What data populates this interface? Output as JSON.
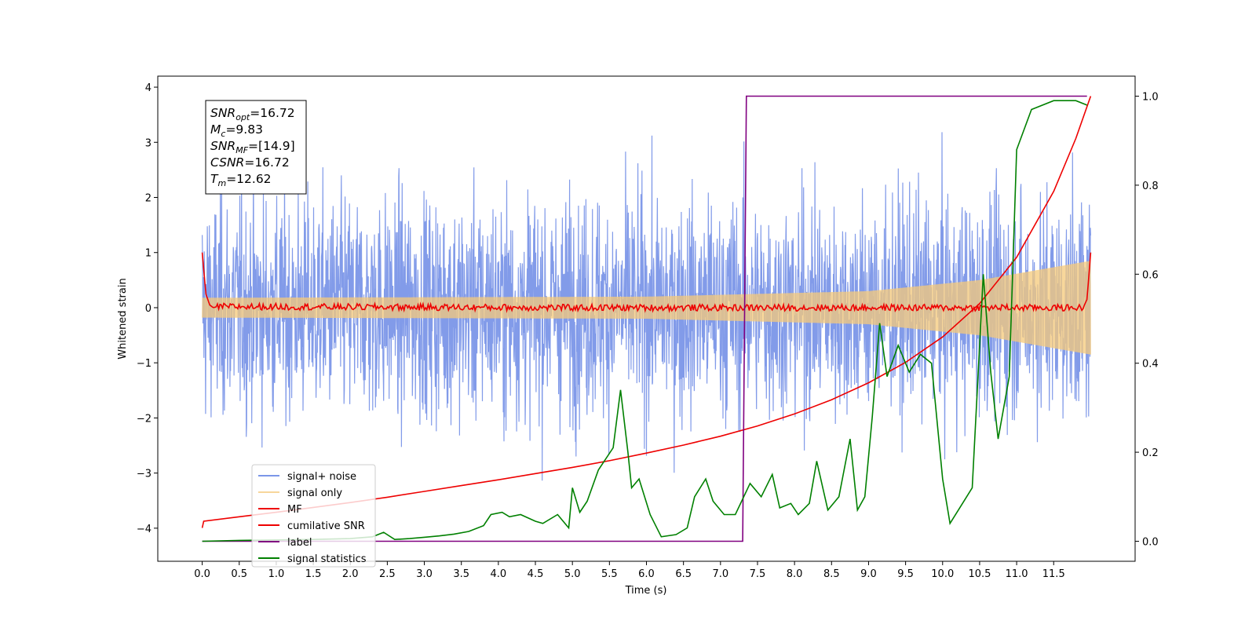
{
  "chart_data": {
    "type": "line",
    "title": "",
    "xlabel": "Time (s)",
    "ylabel": "Whitened strain",
    "y2label": "",
    "xlim": [
      -0.6,
      12.6
    ],
    "ylim": [
      -4.6,
      4.2
    ],
    "y2lim": [
      -0.045,
      1.045
    ],
    "xticks": [
      "0.0",
      "0.5",
      "1.0",
      "1.5",
      "2.0",
      "2.5",
      "3.0",
      "3.5",
      "4.0",
      "4.5",
      "5.0",
      "5.5",
      "6.0",
      "6.5",
      "7.0",
      "7.5",
      "8.0",
      "8.5",
      "9.0",
      "9.5",
      "10.0",
      "10.5",
      "11.0",
      "11.5"
    ],
    "yticks": [
      "4",
      "3",
      "2",
      "1",
      "0",
      "−1",
      "−2",
      "−3",
      "−4"
    ],
    "y2ticks": [
      "1.0",
      "0.8",
      "0.6",
      "0.4",
      "0.2",
      "0.0"
    ],
    "grid": false,
    "legend_position": "lower-left",
    "annotation": {
      "lines": [
        {
          "base": "SNR",
          "sub": "opt",
          "value": "=16.72"
        },
        {
          "base": "M",
          "sub": "c",
          "value": "=9.83"
        },
        {
          "base": "SNR",
          "sub": "MF",
          "value": "=[14.9]"
        },
        {
          "base": "CSNR",
          "sub": "",
          "value": "=16.72"
        },
        {
          "base": "T",
          "sub": "m",
          "value": "=12.62"
        }
      ]
    },
    "series": [
      {
        "name": "signal+ noise",
        "color": "#7b96e8",
        "axis": "left",
        "kind": "noise",
        "noise_std": 1.0,
        "noise_peak": 3.8,
        "t_start": 0.0,
        "t_end": 12.0
      },
      {
        "name": "signal only",
        "color": "#f5c97a",
        "axis": "left",
        "kind": "chirp",
        "amplitude": [
          [
            0.0,
            0.18
          ],
          [
            6.0,
            0.2
          ],
          [
            9.0,
            0.3
          ],
          [
            10.5,
            0.5
          ],
          [
            12.0,
            0.85
          ]
        ]
      },
      {
        "name": "MF",
        "color": "#ee0000",
        "axis": "left",
        "kind": "mf",
        "x": [
          0.0,
          0.05,
          0.1,
          0.15,
          0.2,
          5.0,
          5.7,
          9.3,
          11.9,
          11.95,
          12.0
        ],
        "y": [
          1.0,
          0.25,
          0.05,
          0.0,
          0.02,
          0.0,
          0.0,
          0.0,
          0.0,
          0.15,
          1.0
        ],
        "jitter": 0.06
      },
      {
        "name": "cumilative SNR",
        "color": "#ee0000",
        "axis": "right",
        "x": [
          0.0,
          0.02,
          0.5,
          1.0,
          1.5,
          2.0,
          2.5,
          3.0,
          3.5,
          4.0,
          4.5,
          5.0,
          5.5,
          6.0,
          6.5,
          7.0,
          7.5,
          8.0,
          8.5,
          9.0,
          9.5,
          10.0,
          10.5,
          11.0,
          11.5,
          11.8,
          12.0
        ],
        "y": [
          0.03,
          0.045,
          0.055,
          0.065,
          0.076,
          0.087,
          0.099,
          0.112,
          0.125,
          0.138,
          0.152,
          0.166,
          0.181,
          0.198,
          0.216,
          0.236,
          0.259,
          0.286,
          0.318,
          0.356,
          0.402,
          0.459,
          0.534,
          0.638,
          0.786,
          0.905,
          1.0
        ]
      },
      {
        "name": "label",
        "color": "#800080",
        "axis": "right",
        "x": [
          0.0,
          7.3,
          7.35,
          11.95
        ],
        "y": [
          0.0,
          0.0,
          1.0,
          1.0
        ]
      },
      {
        "name": "signal statistics",
        "color": "#008000",
        "axis": "right",
        "x": [
          0.0,
          0.5,
          1.0,
          1.5,
          2.0,
          2.3,
          2.45,
          2.6,
          2.8,
          3.0,
          3.2,
          3.4,
          3.6,
          3.8,
          3.9,
          4.05,
          4.15,
          4.3,
          4.5,
          4.6,
          4.8,
          4.95,
          5.0,
          5.1,
          5.2,
          5.35,
          5.55,
          5.65,
          5.75,
          5.8,
          5.9,
          6.05,
          6.2,
          6.4,
          6.55,
          6.65,
          6.8,
          6.9,
          7.05,
          7.2,
          7.4,
          7.55,
          7.7,
          7.8,
          7.95,
          8.05,
          8.2,
          8.3,
          8.45,
          8.6,
          8.75,
          8.85,
          8.95,
          9.05,
          9.15,
          9.25,
          9.4,
          9.55,
          9.7,
          9.85,
          10.0,
          10.1,
          10.25,
          10.4,
          10.55,
          10.65,
          10.75,
          10.9,
          11.0,
          11.2,
          11.5,
          11.8,
          11.95
        ],
        "y": [
          0.0,
          0.002,
          0.003,
          0.004,
          0.006,
          0.01,
          0.02,
          0.004,
          0.006,
          0.009,
          0.012,
          0.016,
          0.022,
          0.035,
          0.06,
          0.065,
          0.055,
          0.06,
          0.045,
          0.04,
          0.06,
          0.03,
          0.12,
          0.065,
          0.09,
          0.16,
          0.21,
          0.34,
          0.2,
          0.12,
          0.14,
          0.06,
          0.01,
          0.015,
          0.03,
          0.1,
          0.14,
          0.09,
          0.06,
          0.06,
          0.13,
          0.1,
          0.15,
          0.075,
          0.085,
          0.06,
          0.085,
          0.18,
          0.07,
          0.1,
          0.23,
          0.07,
          0.1,
          0.28,
          0.49,
          0.37,
          0.44,
          0.38,
          0.42,
          0.4,
          0.14,
          0.04,
          0.08,
          0.12,
          0.6,
          0.38,
          0.23,
          0.37,
          0.88,
          0.97,
          0.99,
          0.99,
          0.98
        ]
      }
    ]
  }
}
